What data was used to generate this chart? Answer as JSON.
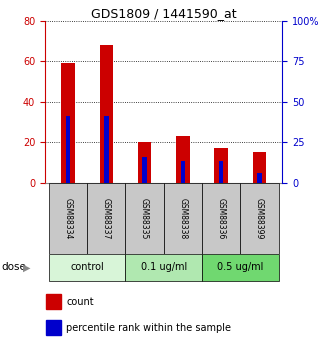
{
  "title": "GDS1809 / 1441590_at",
  "samples": [
    "GSM88334",
    "GSM88337",
    "GSM88335",
    "GSM88338",
    "GSM88336",
    "GSM88399"
  ],
  "count_values": [
    59,
    68,
    20,
    23,
    17,
    15
  ],
  "percentile_right": [
    41.25,
    41.25,
    16.25,
    13.75,
    13.75,
    6.25
  ],
  "groups": [
    {
      "label": "control",
      "indices": [
        0,
        1
      ],
      "color": "#d8f5d8"
    },
    {
      "label": "0.1 ug/ml",
      "indices": [
        2,
        3
      ],
      "color": "#b0e8b0"
    },
    {
      "label": "0.5 ug/ml",
      "indices": [
        4,
        5
      ],
      "color": "#70d870"
    }
  ],
  "red_bar_width": 0.35,
  "blue_bar_width": 0.12,
  "left_ylim": [
    0,
    80
  ],
  "right_ylim": [
    0,
    100
  ],
  "left_yticks": [
    0,
    20,
    40,
    60,
    80
  ],
  "right_yticks": [
    0,
    25,
    50,
    75,
    100
  ],
  "right_yticklabels": [
    "0",
    "25",
    "50",
    "75",
    "100%"
  ],
  "left_color": "#cc0000",
  "right_color": "#0000cc",
  "bar_color_red": "#cc0000",
  "bar_color_blue": "#0000cc",
  "grid_color": "#000000",
  "bg_color": "#ffffff",
  "sample_bg": "#c8c8c8",
  "dose_label": "dose",
  "legend_count": "count",
  "legend_percentile": "percentile rank within the sample"
}
